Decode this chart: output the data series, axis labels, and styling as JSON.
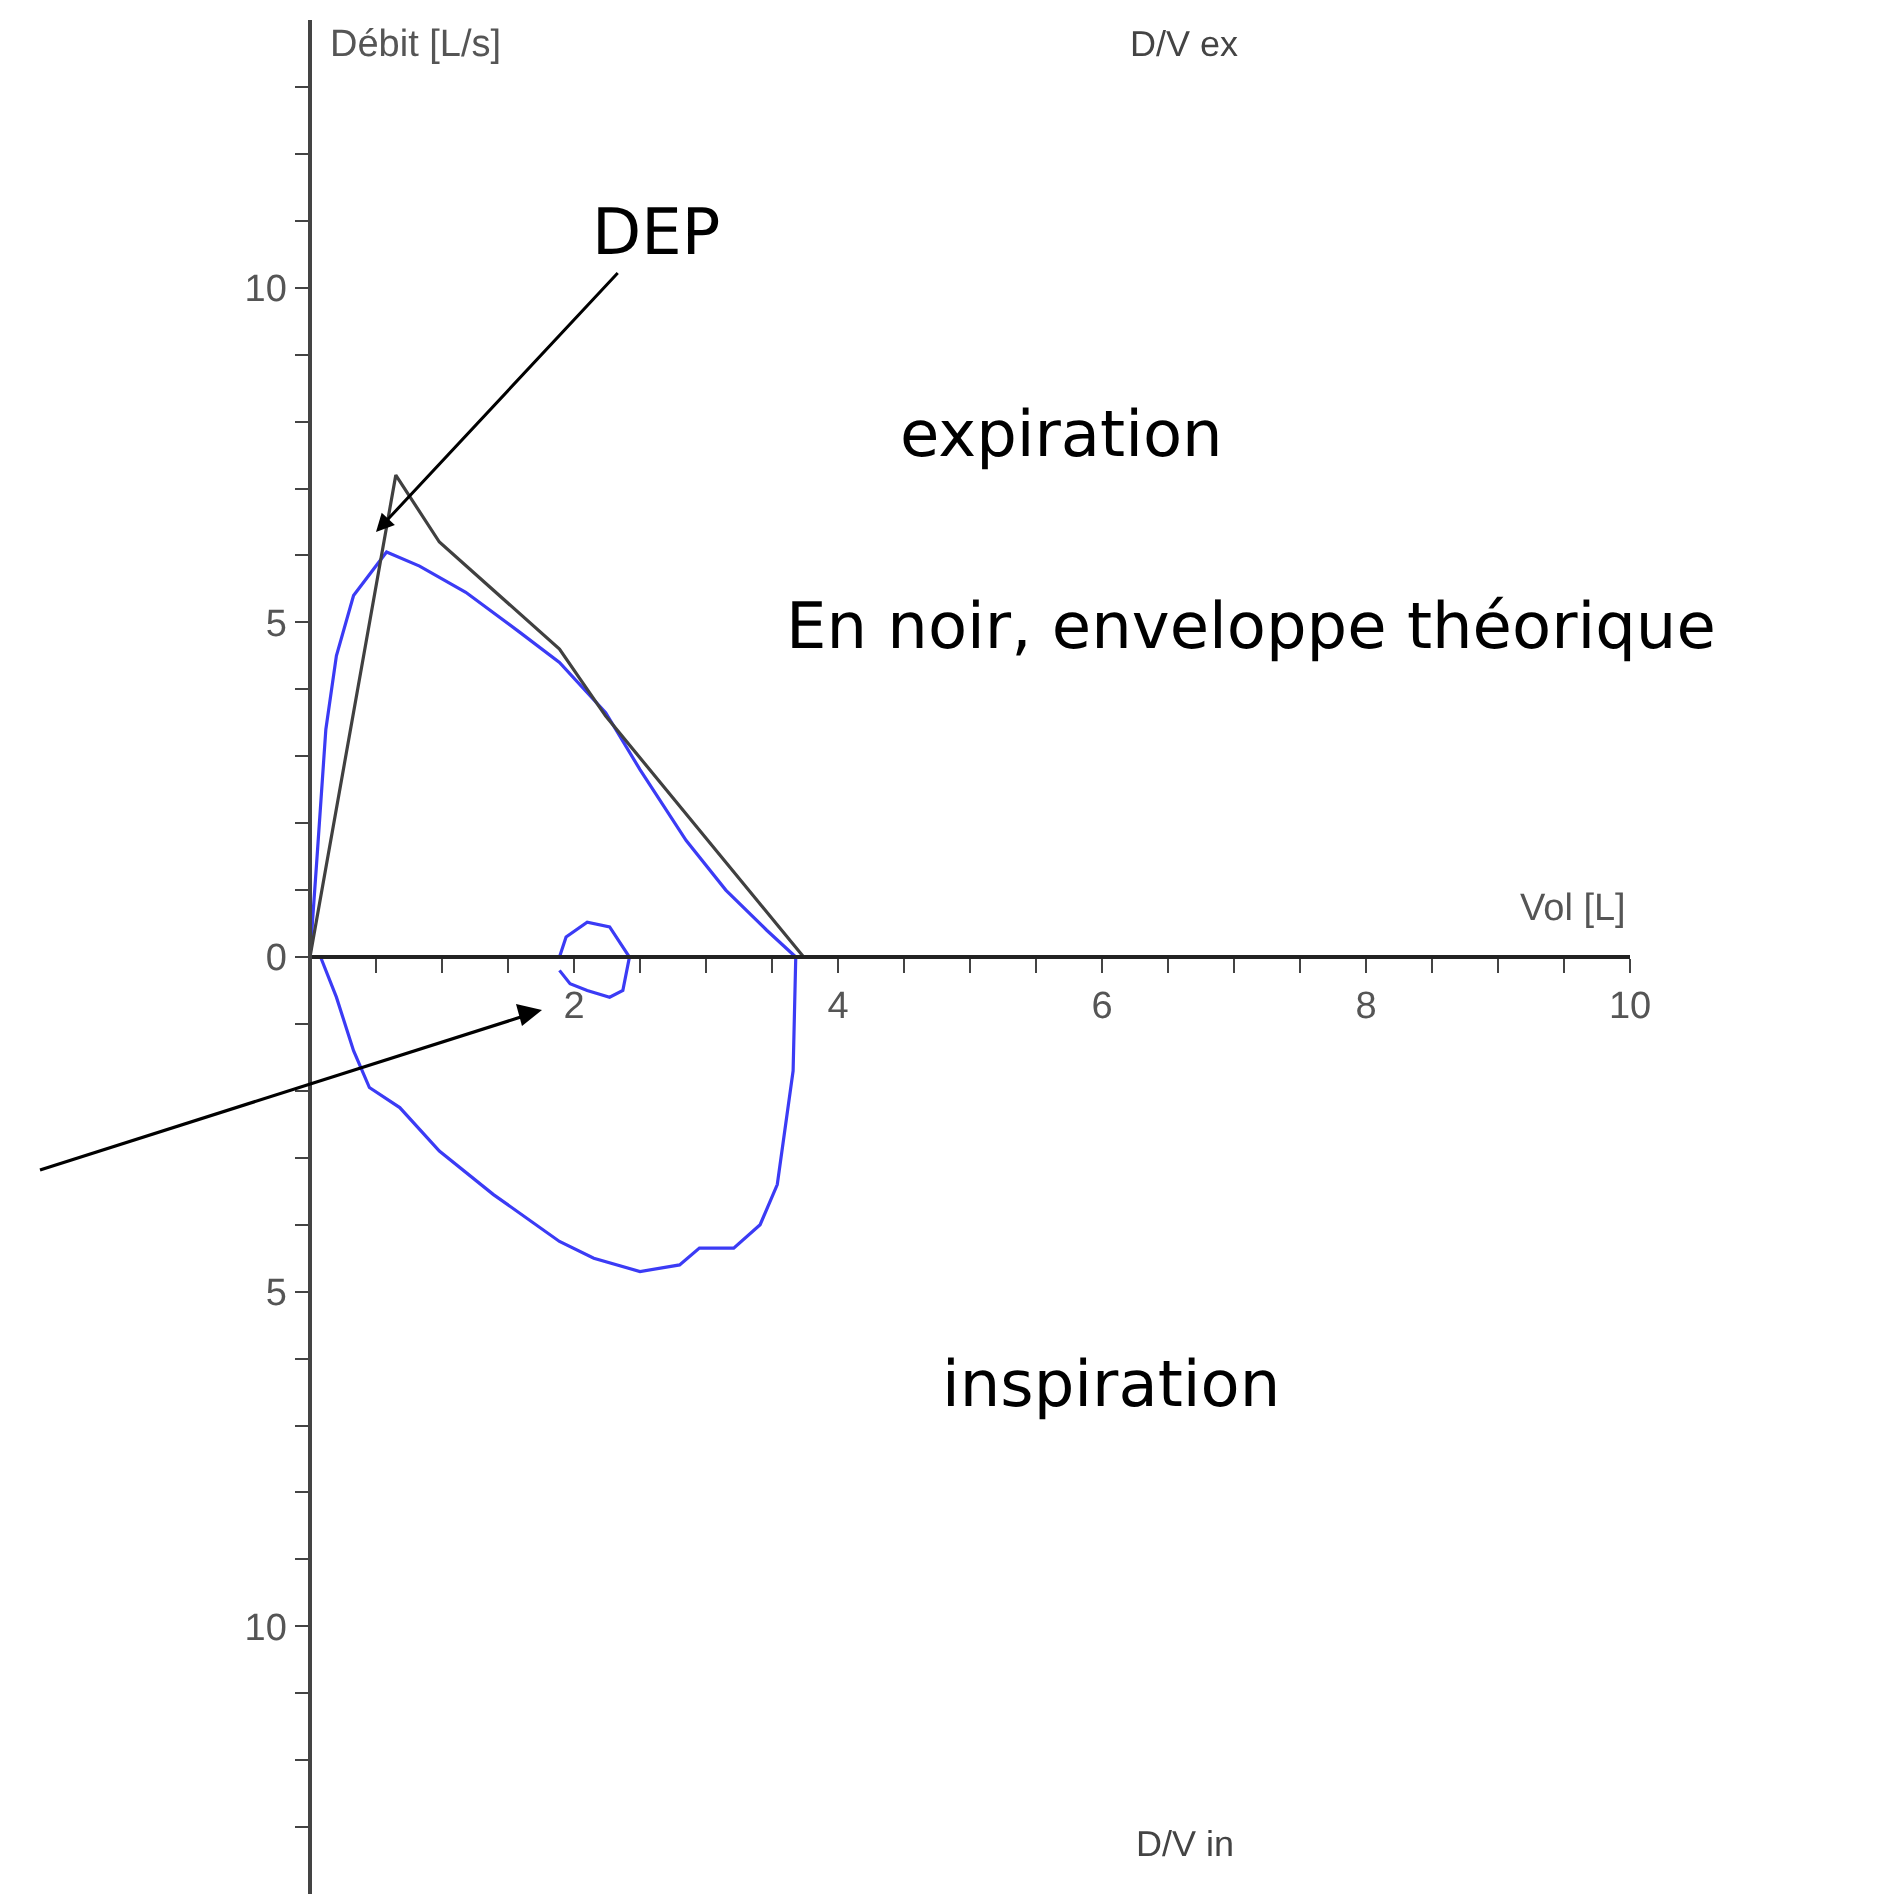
{
  "chart_data": {
    "type": "line",
    "xlabel": "Vol [L]",
    "ylabel": "Débit [L/s]",
    "xlim": [
      0,
      10
    ],
    "ylim": [
      -14,
      14
    ],
    "xticks": [
      {
        "value": 0,
        "label": null
      },
      {
        "value": 0.5,
        "label": null
      },
      {
        "value": 1,
        "label": null
      },
      {
        "value": 1.5,
        "label": null
      },
      2,
      {
        "value": 2.5,
        "label": null
      },
      {
        "value": 3,
        "label": null
      },
      {
        "value": 3.5,
        "label": null
      },
      4,
      {
        "value": 4.5,
        "label": null
      },
      {
        "value": 5,
        "label": null
      },
      {
        "value": 5.5,
        "label": null
      },
      6,
      {
        "value": 6.5,
        "label": null
      },
      {
        "value": 7,
        "label": null
      },
      {
        "value": 7.5,
        "label": null
      },
      8,
      {
        "value": 8.5,
        "label": null
      },
      {
        "value": 9,
        "label": null
      },
      {
        "value": 9.5,
        "label": null
      },
      10
    ],
    "yticks": [
      {
        "value": -13,
        "label": null
      },
      {
        "value": -12,
        "label": null
      },
      {
        "value": -11,
        "label": null
      },
      {
        "value": -10,
        "label": "10"
      },
      {
        "value": -9,
        "label": null
      },
      {
        "value": -8,
        "label": null
      },
      {
        "value": -7,
        "label": null
      },
      {
        "value": -6,
        "label": null
      },
      {
        "value": -5,
        "label": "5"
      },
      {
        "value": -4,
        "label": null
      },
      {
        "value": -3,
        "label": null
      },
      {
        "value": -2,
        "label": null
      },
      {
        "value": -1,
        "label": null
      },
      0,
      {
        "value": 1,
        "label": null
      },
      {
        "value": 2,
        "label": null
      },
      {
        "value": 3,
        "label": null
      },
      {
        "value": 4,
        "label": null
      },
      5,
      {
        "value": 6,
        "label": null
      },
      {
        "value": 7,
        "label": null
      },
      {
        "value": 8,
        "label": null
      },
      {
        "value": 9,
        "label": null
      },
      10,
      {
        "value": 11,
        "label": null
      },
      {
        "value": 12,
        "label": null
      },
      {
        "value": 13,
        "label": null
      }
    ],
    "grid": false,
    "marker": "none",
    "line_style": "solid",
    "series": [
      {
        "color": "#3b3bf5",
        "x": [
          0,
          0.05,
          0.12,
          0.2,
          0.33,
          0.58,
          0.83,
          1.18,
          1.59,
          1.89,
          2.24,
          2.5,
          2.85,
          3.15,
          3.46,
          3.68
        ],
        "values": [
          0,
          1.4,
          3.4,
          4.5,
          5.4,
          6.05,
          5.84,
          5.45,
          4.85,
          4.4,
          3.65,
          2.8,
          1.74,
          1.0,
          0.4,
          0
        ]
      },
      {
        "color": "#3b3bf5",
        "x": [
          3.68,
          3.66,
          3.54,
          3.41,
          3.21,
          2.95,
          2.8,
          2.5,
          2.15,
          1.89,
          1.39,
          0.98,
          0.68,
          0.45,
          0.33,
          0.2,
          0.08,
          0
        ],
        "values": [
          0,
          -1.7,
          -3.4,
          -4.0,
          -4.35,
          -4.35,
          -4.6,
          -4.7,
          -4.5,
          -4.25,
          -3.55,
          -2.9,
          -2.25,
          -1.95,
          -1.4,
          -0.6,
          0,
          0
        ]
      },
      {
        "color": "#3b3bf5",
        "x": [
          1.89,
          1.94,
          2.1,
          2.27,
          2.42,
          2.37,
          2.27,
          2.1,
          1.97,
          1.89
        ],
        "values": [
          0,
          0.3,
          0.52,
          0.45,
          0,
          -0.5,
          -0.6,
          -0.5,
          -0.4,
          -0.2
        ]
      },
      {
        "color": "#404040",
        "x": [
          0,
          0.65,
          0.98,
          1.89,
          2.24,
          3.74
        ],
        "values": [
          0,
          7.2,
          6.2,
          4.6,
          3.6,
          0
        ]
      }
    ],
    "annotations": [
      "D/V ex",
      {
        "text": "DEP",
        "x": 0.5,
        "y": 6.35
      },
      "expiration",
      "En noir, enveloppe théorique",
      "inspiration",
      "D/V in"
    ]
  }
}
